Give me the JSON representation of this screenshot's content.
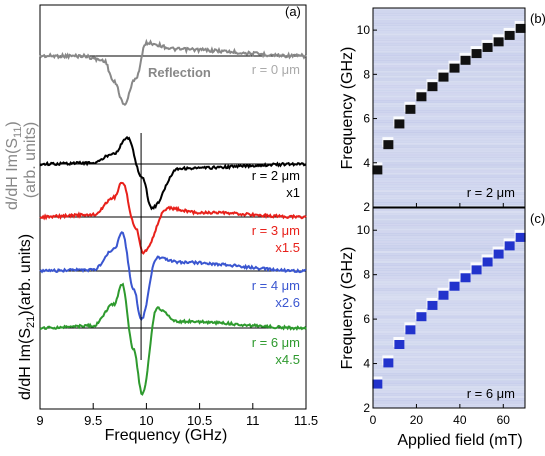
{
  "left_panel": {
    "label": "(a)",
    "type": "line",
    "xlabel": "Frequency (GHz)",
    "xlim": [
      9,
      11.5
    ],
    "xticks": [
      "9",
      "9.5",
      "10",
      "10.5",
      "11",
      "11.5"
    ],
    "ylabel_top": "d/dH Im(S",
    "ylabel_top_sub": "11",
    "ylabel_top_end": ")",
    "ylabel_top_units": "(arb. units)",
    "ylabel_bottom": "d/dH Im(S",
    "ylabel_bottom_sub": "21",
    "ylabel_bottom_end": ")(arb. units)",
    "reflection_text": "Reflection",
    "marker_frequency": 9.95,
    "series": [
      {
        "r": "r = 0 μm",
        "scale": "",
        "color": "#888888",
        "center": 9.79,
        "amp": 1.0
      },
      {
        "r": "r = 2 μm",
        "scale": "x1",
        "color": "#000000",
        "center": 9.96,
        "amp": 1.0
      },
      {
        "r": "r = 3 μm",
        "scale": "x1.5",
        "color": "#e8211b",
        "center": 9.86,
        "amp": 1.0
      },
      {
        "r": "r = 4 μm",
        "scale": "x2.6",
        "color": "#3a56d0",
        "center": 9.86,
        "amp": 1.0
      },
      {
        "r": "r = 6 μm",
        "scale": "x4.5",
        "color": "#2e9a2e",
        "center": 9.86,
        "amp": 1.0
      }
    ]
  },
  "right_panels": {
    "xlabel": "Applied field (mT)",
    "ylabel": "Frequency (GHz)",
    "xticks": [
      "0",
      "20",
      "40",
      "60"
    ],
    "yticks": [
      "2",
      "4",
      "6",
      "8",
      "10"
    ],
    "panels": [
      {
        "label": "(b)",
        "r": "r = 2 μm",
        "type": "heatmap"
      },
      {
        "label": "(c)",
        "r": "r = 6 μm",
        "type": "heatmap"
      }
    ]
  },
  "chart_data": [
    {
      "type": "line",
      "xlabel": "Frequency (GHz)",
      "xlim": [
        9,
        11.5
      ],
      "series": [
        {
          "name": "r = 0 μm",
          "x": [
            9.0,
            9.4,
            9.6,
            9.7,
            9.79,
            9.9,
            10.0,
            10.3,
            11.5
          ],
          "y": [
            0,
            0,
            -0.2,
            -1.2,
            -2.2,
            -1.0,
            0.6,
            0.3,
            0
          ]
        },
        {
          "name": "r = 2 μm",
          "x": [
            9.0,
            9.5,
            9.7,
            9.82,
            9.96,
            10.05,
            10.3,
            11.5
          ],
          "y": [
            0,
            0.05,
            0.5,
            1.2,
            -0.6,
            -2.0,
            -0.2,
            0
          ]
        },
        {
          "name": "r = 3 μm",
          "x": [
            9.0,
            9.5,
            9.7,
            9.77,
            9.9,
            9.97,
            10.2,
            10.5,
            11.5
          ],
          "y": [
            0,
            0.1,
            0.9,
            1.6,
            -0.5,
            -1.6,
            0.4,
            0.2,
            0
          ]
        },
        {
          "name": "r = 4 μm",
          "x": [
            9.0,
            9.5,
            9.7,
            9.77,
            9.88,
            9.95,
            10.1,
            10.3,
            11.5
          ],
          "y": [
            0,
            0.05,
            1.0,
            1.8,
            -0.8,
            -2.2,
            0.6,
            0.4,
            0
          ]
        },
        {
          "name": "r = 6 μm",
          "x": [
            9.0,
            9.5,
            9.7,
            9.77,
            9.88,
            9.96,
            10.1,
            10.3,
            11.5
          ],
          "y": [
            0,
            0.1,
            1.1,
            2.0,
            -1.0,
            -3.0,
            0.9,
            0.3,
            0
          ]
        }
      ]
    },
    {
      "type": "heatmap",
      "title": "(b)",
      "annotation": "r = 2 μm",
      "xlabel": "Applied field (mT)",
      "ylabel": "Frequency (GHz)",
      "xlim": [
        0,
        70
      ],
      "ylim": [
        2,
        11
      ],
      "ridge": {
        "x": [
          2,
          10,
          20,
          30,
          40,
          50,
          60,
          68
        ],
        "y": [
          3.7,
          5.5,
          6.8,
          7.7,
          8.5,
          9.1,
          9.6,
          10.1
        ]
      }
    },
    {
      "type": "heatmap",
      "title": "(c)",
      "annotation": "r = 6 μm",
      "xlabel": "Applied field (mT)",
      "ylabel": "Frequency (GHz)",
      "xlim": [
        0,
        70
      ],
      "ylim": [
        2,
        11
      ],
      "ridge": {
        "x": [
          2,
          10,
          20,
          30,
          40,
          50,
          60,
          68
        ],
        "y": [
          3.1,
          4.6,
          5.9,
          6.9,
          7.7,
          8.4,
          9.1,
          9.7
        ]
      }
    }
  ]
}
